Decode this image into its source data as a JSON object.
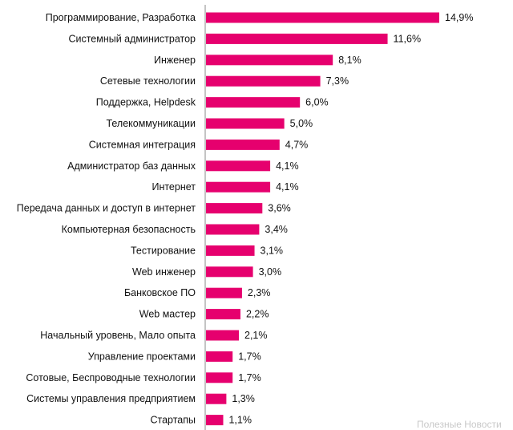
{
  "chart_data": {
    "type": "bar",
    "orientation": "horizontal",
    "bar_color": "#e6006e",
    "axis_color": "#888888",
    "categories": [
      "Программирование, Разработка",
      "Системный администратор",
      "Инженер",
      "Сетевые технологии",
      "Поддержка, Helpdesk",
      "Телекоммуникации",
      "Системная интеграция",
      "Администратор баз данных",
      "Интернет",
      "Передача данных и доступ в интернет",
      "Компьютерная безопасность",
      "Тестирование",
      "Web инженер",
      "Банковское ПО",
      "Web мастер",
      "Начальный уровень, Мало опыта",
      "Управление проектами",
      "Сотовые, Беспроводные технологии",
      "Системы управления предприятием",
      "Стартапы"
    ],
    "values": [
      14.9,
      11.6,
      8.1,
      7.3,
      6.0,
      5.0,
      4.7,
      4.1,
      4.1,
      3.6,
      3.4,
      3.1,
      3.0,
      2.3,
      2.2,
      2.1,
      1.7,
      1.7,
      1.3,
      1.1
    ],
    "value_labels": [
      "14,9%",
      "11,6%",
      "8,1%",
      "7,3%",
      "6,0%",
      "5,0%",
      "4,7%",
      "4,1%",
      "4,1%",
      "3,6%",
      "3,4%",
      "3,1%",
      "3,0%",
      "2,3%",
      "2,2%",
      "2,1%",
      "1,7%",
      "1,7%",
      "1,3%",
      "1,1%"
    ],
    "xlim": [
      0,
      14.9
    ],
    "grid": false,
    "legend": "none"
  },
  "watermark": "Полезные Новости"
}
